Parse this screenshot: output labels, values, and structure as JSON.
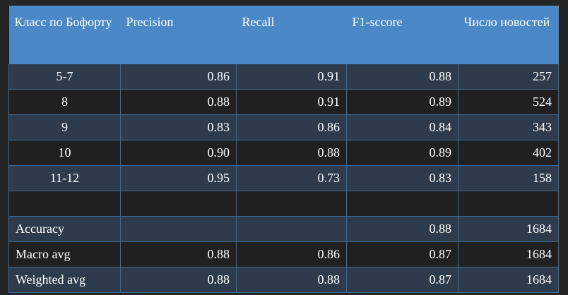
{
  "headers": [
    "Класс по Бофорту",
    "Precision",
    "Recall",
    "F1-sccore",
    "Число новостей"
  ],
  "class_rows": [
    {
      "label": "5-7",
      "precision": "0.86",
      "recall": "0.91",
      "f1": "0.88",
      "support": "257"
    },
    {
      "label": "8",
      "precision": "0.88",
      "recall": "0.91",
      "f1": "0.89",
      "support": "524"
    },
    {
      "label": "9",
      "precision": "0.83",
      "recall": "0.86",
      "f1": "0.84",
      "support": "343"
    },
    {
      "label": "10",
      "precision": "0.90",
      "recall": "0.88",
      "f1": "0.89",
      "support": "402"
    },
    {
      "label": "11-12",
      "precision": "0.95",
      "recall": "0.73",
      "f1": "0.83",
      "support": "158"
    }
  ],
  "summary_rows": [
    {
      "label": "Accuracy",
      "precision": "",
      "recall": "",
      "f1": "0.88",
      "support": "1684"
    },
    {
      "label": "Macro avg",
      "precision": "0.88",
      "recall": "0.86",
      "f1": "0.87",
      "support": "1684"
    },
    {
      "label": "Weighted avg",
      "precision": "0.88",
      "recall": "0.88",
      "f1": "0.87",
      "support": "1684"
    }
  ],
  "colors": {
    "header_bg": "#4a88c8",
    "row_odd_bg": "#2e3b4c",
    "row_even_bg": "#202020",
    "grid": "#3c6a93",
    "text": "#ffffff"
  }
}
